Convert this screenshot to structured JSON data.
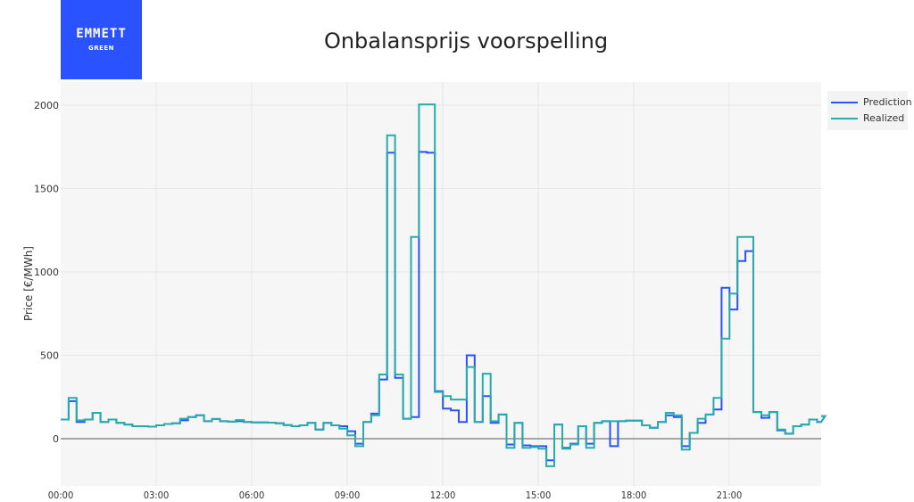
{
  "logo": {
    "mark": "EMMETT",
    "sub": "GREEN",
    "color": "#2a52fe"
  },
  "title": "Onbalansprijs voorspelling",
  "legend": [
    {
      "label": "Prediction",
      "color": "#2a52fe"
    },
    {
      "label": "Realized",
      "color": "#27ada9"
    }
  ],
  "chart_data": {
    "type": "line",
    "step": true,
    "title": "Onbalansprijs voorspelling",
    "xlabel": "",
    "ylabel": "Price [€/MWh]",
    "x_ticks": [
      "00:00",
      "03:00",
      "06:00",
      "09:00",
      "12:00",
      "15:00",
      "18:00",
      "21:00"
    ],
    "y_ticks": [
      0,
      500,
      1000,
      1500,
      2000
    ],
    "ylim": [
      -270,
      2100
    ],
    "interval_minutes": 15,
    "grid": true,
    "legend_position": "top-right outside",
    "series": [
      {
        "name": "Prediction",
        "color": "#2a52fe",
        "values": [
          115,
          225,
          100,
          115,
          155,
          100,
          115,
          95,
          85,
          75,
          75,
          72,
          80,
          88,
          92,
          110,
          130,
          140,
          105,
          118,
          105,
          102,
          105,
          100,
          98,
          98,
          96,
          92,
          82,
          75,
          80,
          95,
          55,
          95,
          80,
          75,
          45,
          -30,
          100,
          150,
          355,
          1715,
          365,
          120,
          130,
          1720,
          1715,
          285,
          180,
          170,
          100,
          500,
          100,
          255,
          95,
          145,
          -35,
          95,
          -40,
          -45,
          -45,
          -130,
          85,
          -55,
          -30,
          75,
          -30,
          95,
          105,
          -45,
          105,
          108,
          108,
          80,
          65,
          100,
          140,
          130,
          -45,
          35,
          95,
          145,
          175,
          905,
          775,
          1065,
          1125,
          160,
          125,
          160,
          50,
          30,
          75,
          85,
          115,
          100,
          135
        ]
      },
      {
        "name": "Realized",
        "color": "#27ada9",
        "values": [
          115,
          245,
          110,
          115,
          155,
          100,
          115,
          95,
          85,
          75,
          75,
          72,
          80,
          88,
          92,
          120,
          130,
          140,
          105,
          118,
          105,
          102,
          112,
          100,
          98,
          98,
          96,
          92,
          82,
          75,
          80,
          95,
          55,
          95,
          80,
          60,
          20,
          -45,
          100,
          140,
          385,
          1820,
          385,
          120,
          1210,
          2005,
          2005,
          280,
          255,
          235,
          235,
          430,
          100,
          390,
          105,
          145,
          -55,
          95,
          -55,
          -50,
          -60,
          -165,
          85,
          -60,
          -35,
          75,
          -55,
          95,
          105,
          105,
          105,
          108,
          108,
          80,
          65,
          100,
          155,
          140,
          -65,
          35,
          120,
          145,
          245,
          600,
          870,
          1210,
          1210,
          160,
          140,
          160,
          55,
          30,
          75,
          85,
          115,
          100,
          135
        ]
      }
    ]
  }
}
